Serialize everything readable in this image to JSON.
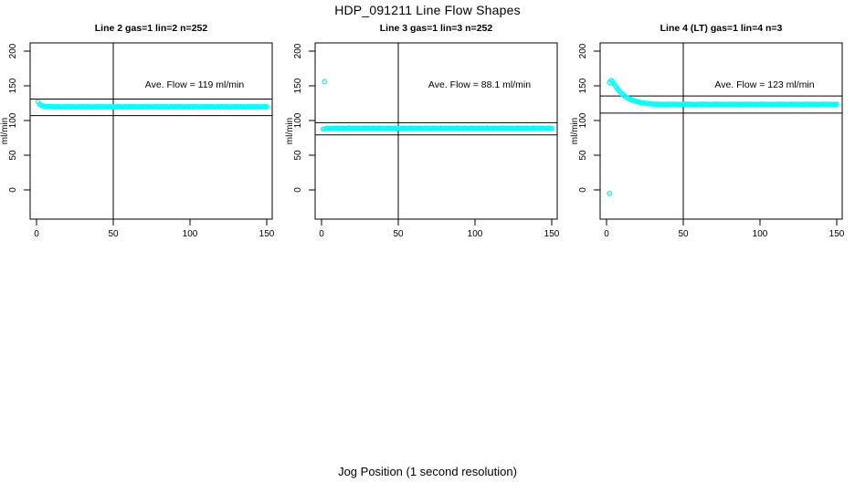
{
  "figure": {
    "title": "HDP_091211  Line Flow Shapes",
    "xlabel": "Jog Position (1 second resolution)"
  },
  "chart_data": [
    {
      "type": "scatter",
      "title": "Line 2 gas=1 lin=2 n=252",
      "annotation": "Ave. Flow =  119  ml/min",
      "ave_flow_ml_min": 119,
      "ylabel": "ml/min",
      "marker_color": "#00ffff",
      "axis_color": "#000000",
      "xlim": [
        0,
        155
      ],
      "ylim": [
        -20,
        210
      ],
      "x_ticks": [
        0,
        50,
        100,
        150
      ],
      "y_ticks": [
        0,
        50,
        100,
        150,
        200
      ],
      "vline_x": 50,
      "hlines": [
        130.9,
        107.1
      ],
      "grid": false,
      "legend": "none",
      "x_start": 1,
      "x_step": 1,
      "y_values": [
        127,
        123.5,
        122,
        121.2,
        120.7,
        120.4,
        120.2,
        120.1,
        120,
        119.9,
        119.8,
        119.5,
        120,
        119.6,
        119.9,
        119.4,
        119.7,
        120.1,
        119.5,
        119.8,
        119.8,
        119.5,
        120,
        119.6,
        119.9,
        119.4,
        119.7,
        120.1,
        119.5,
        119.8,
        119.8,
        119.5,
        120,
        119.6,
        119.9,
        119.4,
        119.7,
        120.1,
        119.5,
        119.8,
        119.8,
        119.5,
        120,
        119.6,
        119.9,
        119.4,
        119.7,
        120.1,
        119.5,
        119.8,
        119.8,
        119.5,
        120,
        119.6,
        119.9,
        119.4,
        119.7,
        120.1,
        119.5,
        119.8,
        119.8,
        119.5,
        120,
        119.6,
        119.9,
        119.4,
        119.7,
        120.1,
        119.5,
        119.8,
        119.8,
        119.5,
        120,
        119.6,
        119.9,
        119.4,
        119.7,
        120.1,
        119.5,
        119.8,
        119.8,
        119.5,
        120,
        119.6,
        119.9,
        119.4,
        119.7,
        120.1,
        119.5,
        119.8,
        119.8,
        119.5,
        120,
        119.6,
        119.9,
        119.4,
        119.7,
        120.1,
        119.5,
        119.8,
        119.8,
        119.5,
        120,
        119.6,
        119.9,
        119.4,
        119.7,
        120.1,
        119.5,
        119.8,
        119.8,
        119.5,
        120,
        119.6,
        119.9,
        119.4,
        119.7,
        120.1,
        119.5,
        119.8,
        119.8,
        119.5,
        120,
        119.6,
        119.9,
        119.4,
        119.7,
        120.1,
        119.5,
        119.8,
        119.8,
        119.5,
        120,
        119.6,
        119.9,
        119.4,
        119.7,
        120.1,
        119.5,
        119.8,
        119.8,
        119.5,
        120,
        119.6,
        119.9,
        119.4,
        119.7,
        120.1,
        119.5,
        119.8
      ],
      "extra_points": []
    },
    {
      "type": "scatter",
      "title": "Line 3 gas=1 lin=3 n=252",
      "annotation": "Ave. Flow =  88.1  ml/min",
      "ave_flow_ml_min": 88.1,
      "ylabel": "ml/min",
      "marker_color": "#00ffff",
      "axis_color": "#000000",
      "xlim": [
        0,
        155
      ],
      "ylim": [
        -20,
        210
      ],
      "x_ticks": [
        0,
        50,
        100,
        150
      ],
      "y_ticks": [
        0,
        50,
        100,
        150,
        200
      ],
      "vline_x": 50,
      "hlines": [
        96.9,
        79.3
      ],
      "grid": false,
      "legend": "none",
      "x_start": 1,
      "x_step": 1,
      "y_values": [
        87.5,
        88,
        88.3,
        88.5,
        88.6,
        88.7,
        88.8,
        88.8,
        88.9,
        88.9,
        88.9,
        88.6,
        89.1,
        88.7,
        89,
        88.5,
        88.8,
        89.2,
        88.6,
        88.9,
        88.9,
        88.6,
        89.1,
        88.7,
        89,
        88.5,
        88.8,
        89.2,
        88.6,
        88.9,
        88.9,
        88.6,
        89.1,
        88.7,
        89,
        88.5,
        88.8,
        89.2,
        88.6,
        88.9,
        88.9,
        88.6,
        89.1,
        88.7,
        89,
        88.5,
        88.8,
        89.2,
        88.6,
        88.9,
        88.9,
        88.6,
        89.1,
        88.7,
        89,
        88.5,
        88.8,
        89.2,
        88.6,
        88.9,
        88.9,
        88.6,
        89.1,
        88.7,
        89,
        88.5,
        88.8,
        89.2,
        88.6,
        88.9,
        88.9,
        88.6,
        89.1,
        88.7,
        89,
        88.5,
        88.8,
        89.2,
        88.6,
        88.9,
        88.9,
        88.6,
        89.1,
        88.7,
        89,
        88.5,
        88.8,
        89.2,
        88.6,
        88.9,
        88.9,
        88.6,
        89.1,
        88.7,
        89,
        88.5,
        88.8,
        89.2,
        88.6,
        88.9,
        88.9,
        88.6,
        89.1,
        88.7,
        89,
        88.5,
        88.8,
        89.2,
        88.6,
        88.9,
        88.9,
        88.6,
        89.1,
        88.7,
        89,
        88.5,
        88.8,
        89.2,
        88.6,
        88.9,
        88.9,
        88.6,
        89.1,
        88.7,
        89,
        88.5,
        88.8,
        89.2,
        88.6,
        88.9,
        88.9,
        88.6,
        89.1,
        88.7,
        89,
        88.5,
        88.8,
        89.2,
        88.6,
        88.9,
        88.9,
        88.6,
        89.1,
        88.7,
        89,
        88.5,
        88.8,
        89.2,
        88.6,
        88.9
      ],
      "extra_points": [
        [
          2,
          156
        ]
      ]
    },
    {
      "type": "scatter",
      "title": "Line 4 (LT) gas=1 lin=4 n=3",
      "annotation": "Ave. Flow =  123  ml/min",
      "ave_flow_ml_min": 123,
      "ylabel": "ml/min",
      "marker_color": "#00ffff",
      "axis_color": "#000000",
      "xlim": [
        0,
        155
      ],
      "ylim": [
        -20,
        210
      ],
      "x_ticks": [
        0,
        50,
        100,
        150
      ],
      "y_ticks": [
        0,
        50,
        100,
        150,
        200
      ],
      "vline_x": 50,
      "hlines": [
        135.3,
        110.7
      ],
      "grid": false,
      "legend": "none",
      "x_start": 2,
      "x_step": 1,
      "y_values": [
        155,
        158,
        156,
        152.5,
        149,
        146,
        143.2,
        140.8,
        138.6,
        136.7,
        135,
        133.5,
        132.2,
        131.1,
        130.1,
        129.2,
        128.4,
        127.7,
        127.1,
        126.6,
        126.1,
        125.7,
        125.3,
        125,
        124.7,
        124.5,
        124.3,
        124.1,
        123.9,
        123.6,
        123.3,
        123.7,
        123.2,
        123.5,
        123.1,
        123.4,
        123,
        123.3,
        123.5,
        123.6,
        123.3,
        123.7,
        123.2,
        123.5,
        123.1,
        123.4,
        123,
        123.3,
        123.5,
        123.6,
        123.3,
        123.7,
        123.2,
        123.5,
        123.1,
        123.4,
        123,
        123.3,
        123.5,
        123.6,
        123.3,
        123.7,
        123.2,
        123.5,
        123.1,
        123.4,
        123,
        123.3,
        123.5,
        123.6,
        123.3,
        123.7,
        123.2,
        123.5,
        123.1,
        123.4,
        123,
        123.3,
        123.5,
        123.6,
        123.3,
        123.7,
        123.2,
        123.5,
        123.1,
        123.4,
        123,
        123.3,
        123.5,
        123.6,
        123.3,
        123.7,
        123.2,
        123.5,
        123.1,
        123.4,
        123,
        123.3,
        123.5,
        123.6,
        123.3,
        123.7,
        123.2,
        123.5,
        123.1,
        123.4,
        123,
        123.3,
        123.5,
        123.6,
        123.3,
        123.7,
        123.2,
        123.5,
        123.1,
        123.4,
        123,
        123.3,
        123.5,
        123.6,
        123.3,
        123.7,
        123.2,
        123.5,
        123.1,
        123.4,
        123,
        123.3,
        123.5,
        123.6,
        123.3,
        123.7,
        123.2,
        123.5,
        123.1,
        123.4,
        123,
        123.3,
        123.5,
        123.6,
        123.3,
        123.7,
        123.2,
        123.5,
        123.1,
        123.4,
        123,
        123.3,
        123.5
      ],
      "extra_points": [
        [
          2,
          -5
        ]
      ]
    }
  ]
}
